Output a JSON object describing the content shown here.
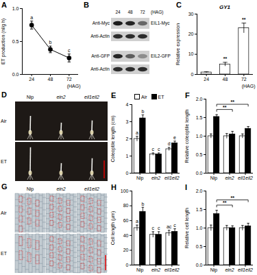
{
  "chart_data": [
    {
      "panel": "A",
      "type": "line",
      "categories": [
        "24",
        "48",
        "72"
      ],
      "x_label": "(HAG)",
      "y_label": "ET production (nl/g h)",
      "values": [
        0.75,
        0.38,
        0.25
      ],
      "errors": [
        0.06,
        0.05,
        0.06
      ],
      "letters": [
        "a",
        "b",
        "c"
      ],
      "color": "#000000",
      "marker": "circle",
      "ylim": [
        0,
        1.0
      ],
      "yticks": [
        {
          "value": 0,
          "label": "0.0"
        },
        {
          "value": 0.5,
          "label": "0.5"
        },
        {
          "value": 1.0,
          "label": "1.0"
        }
      ]
    },
    {
      "panel": "C",
      "type": "bar",
      "title": "GY1",
      "categories": [
        "24",
        "48",
        "72"
      ],
      "x_label": "(HAG)",
      "y_label": "Relative expression",
      "values": [
        1,
        5,
        23
      ],
      "errors": [
        0.3,
        1,
        2.5
      ],
      "significance": [
        null,
        "**",
        "**"
      ],
      "color": "#ffffff",
      "ylim": [
        0,
        30
      ],
      "yticks": [
        0,
        10,
        20,
        30
      ]
    },
    {
      "panel": "E",
      "type": "bar",
      "categories": [
        "Nip",
        "ein2",
        "eil1eil2"
      ],
      "y_label": "Coleoptile length (cm)",
      "legend": "top-left",
      "series": [
        {
          "name": "Air",
          "color": "#ffffff",
          "values": [
            2.0,
            1.1,
            1.4
          ],
          "errors": [
            0.15,
            0.08,
            0.1
          ],
          "letters": [
            "a",
            "c",
            "d"
          ]
        },
        {
          "name": "ET",
          "color": "#000000",
          "values": [
            3.2,
            1.1,
            1.75
          ],
          "errors": [
            0.2,
            0.08,
            0.12
          ],
          "letters": [
            "b",
            "c",
            "e"
          ]
        }
      ],
      "ylim": [
        0,
        4
      ],
      "yticks": [
        0,
        1,
        2,
        3,
        4
      ]
    },
    {
      "panel": "F",
      "type": "bar",
      "categories": [
        "Nip",
        "ein2",
        "eil1eil2"
      ],
      "y_label": "Relative coleoptile length",
      "series": [
        {
          "color": "#ffffff",
          "values": [
            1.0,
            1.0,
            1.0
          ],
          "errors": [
            0.06,
            0.07,
            0.06
          ]
        },
        {
          "color": "#000000",
          "values": [
            1.52,
            1.05,
            1.2
          ],
          "errors": [
            0.06,
            0.08,
            0.06
          ]
        }
      ],
      "brackets": [
        {
          "from": "Nip",
          "to": "ein2",
          "label": "**"
        },
        {
          "from": "Nip",
          "to": "eil1eil2",
          "label": "**"
        }
      ],
      "ylim": [
        0,
        2.0
      ],
      "yticks": [
        {
          "value": 0,
          "label": "0.0"
        },
        {
          "value": 0.5,
          "label": "0.5"
        },
        {
          "value": 1.0,
          "label": "1.0"
        },
        {
          "value": 1.5,
          "label": "1.5"
        },
        {
          "value": 2.0,
          "label": "2.0"
        }
      ]
    },
    {
      "panel": "H",
      "type": "bar",
      "categories": [
        "Nip",
        "ein2",
        "eil1eil2"
      ],
      "y_label": "Cell length (μm)",
      "series": [
        {
          "color": "#ffffff",
          "values": [
            50,
            41,
            43
          ],
          "errors": [
            4,
            4,
            4
          ],
          "letters": [
            "a",
            "c",
            "ac"
          ]
        },
        {
          "color": "#000000",
          "values": [
            72,
            41,
            45
          ],
          "errors": [
            6,
            4,
            4
          ],
          "letters": [
            "b",
            "c",
            "c"
          ]
        }
      ],
      "ylim": [
        0,
        100
      ],
      "yticks": [
        0,
        20,
        40,
        60,
        80,
        100
      ]
    },
    {
      "panel": "I",
      "type": "bar",
      "categories": [
        "Nip",
        "ein2",
        "eil1eil2"
      ],
      "y_label": "Relative cell length",
      "series": [
        {
          "color": "#ffffff",
          "values": [
            1.0,
            1.0,
            1.0
          ],
          "errors": [
            0.08,
            0.07,
            0.07
          ]
        },
        {
          "color": "#000000",
          "values": [
            1.38,
            1.0,
            1.05
          ],
          "errors": [
            0.1,
            0.06,
            0.08
          ]
        }
      ],
      "brackets": [
        {
          "from": "Nip",
          "to": "ein2",
          "label": "**"
        },
        {
          "from": "Nip",
          "to": "eil1eil2",
          "label": "**"
        }
      ],
      "ylim": [
        0,
        2.0
      ],
      "yticks": [
        {
          "value": 0,
          "label": "0.0"
        },
        {
          "value": 0.5,
          "label": "0.5"
        },
        {
          "value": 1.0,
          "label": "1.0"
        },
        {
          "value": 1.5,
          "label": "1.5"
        },
        {
          "value": 2.0,
          "label": "2.0"
        }
      ]
    }
  ],
  "blot": {
    "panel": "B",
    "lanes": [
      "24",
      "48",
      "72"
    ],
    "lane_unit": "(HAG)",
    "rows": [
      {
        "antibody": "Anti-Myc",
        "protein": "EIL1-Myc",
        "intensity": [
          0.95,
          0.9,
          0.55
        ]
      },
      {
        "antibody": "Anti-Actin",
        "intensity": [
          0.85,
          0.85,
          0.85
        ]
      },
      {
        "antibody": "Anti-GFP",
        "protein": "EIL2-GFP",
        "intensity": [
          0.9,
          0.6,
          0.35
        ]
      },
      {
        "antibody": "Anti-Actin",
        "intensity": [
          0.85,
          0.85,
          0.85
        ]
      }
    ]
  },
  "photos": {
    "panel": "D",
    "columns": [
      "Nip",
      "ein2",
      "eil1eil2"
    ],
    "rows": [
      "Air",
      "ET"
    ]
  },
  "micrographs": {
    "panel": "G",
    "columns": [
      "Nip",
      "ein2",
      "eil1eil2"
    ],
    "rows": [
      "Air",
      "ET"
    ]
  }
}
